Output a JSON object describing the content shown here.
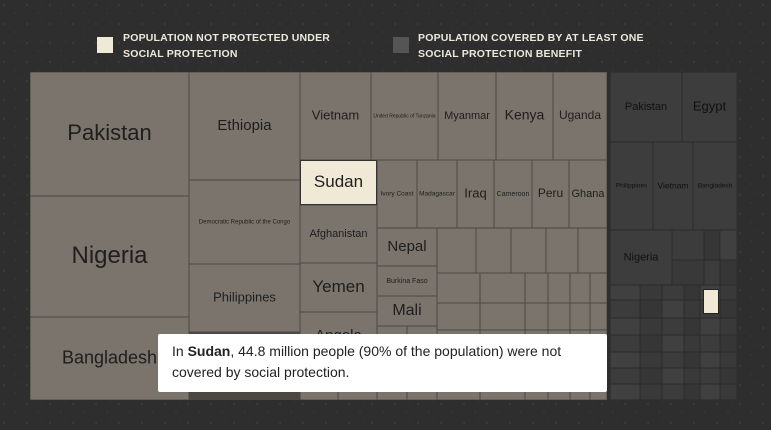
{
  "legend": [
    {
      "label": "POPULATION NOT PROTECTED UNDER SOCIAL PROTECTION"
    },
    {
      "label": "POPULATION COVERED BY AT LEAST ONE SOCIAL PROTECTION BENEFIT"
    }
  ],
  "uncovered_tiles": [
    {
      "label": "Pakistan"
    },
    {
      "label": "Nigeria"
    },
    {
      "label": "Bangladesh"
    },
    {
      "label": "Ethiopia"
    },
    {
      "label": "Democratic Republic of the Congo"
    },
    {
      "label": "Philippines"
    },
    {
      "label": "Vietnam"
    },
    {
      "label": "United Republic of Tanzania"
    },
    {
      "label": "Myanmar"
    },
    {
      "label": "Kenya"
    },
    {
      "label": "Uganda"
    },
    {
      "label": "Sudan"
    },
    {
      "label": "Afghanistan"
    },
    {
      "label": "Yemen"
    },
    {
      "label": "Angola"
    },
    {
      "label": "Ivory Coast"
    },
    {
      "label": "Madagascar"
    },
    {
      "label": "Iraq"
    },
    {
      "label": "Cameroon"
    },
    {
      "label": "Peru"
    },
    {
      "label": "Ghana"
    },
    {
      "label": "Nepal"
    },
    {
      "label": "Burkina Faso"
    },
    {
      "label": "Mali"
    }
  ],
  "covered_tiles": [
    {
      "label": "Pakistan"
    },
    {
      "label": "Egypt"
    },
    {
      "label": "Philippines"
    },
    {
      "label": "Vietnam"
    },
    {
      "label": "Bangladesh"
    },
    {
      "label": "Nigeria"
    }
  ],
  "tooltip": {
    "prefix": "In ",
    "country": "Sudan",
    "suffix": ", 44.8 million people (90% of the population) were not covered by social protection."
  }
}
